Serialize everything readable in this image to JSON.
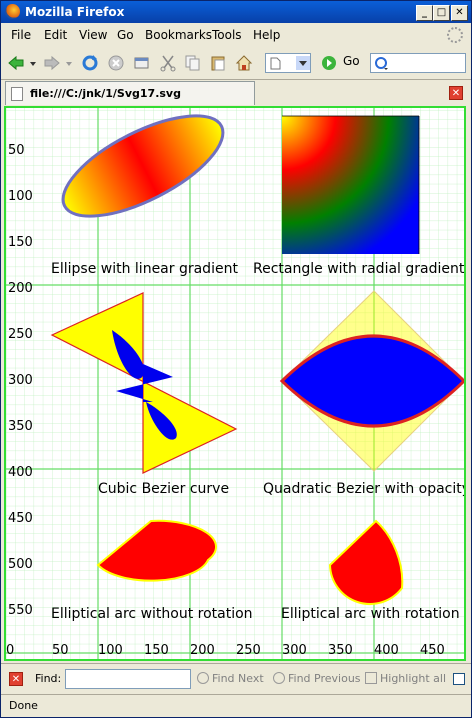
{
  "window": {
    "title": "Mozilla Firefox",
    "min": "_",
    "max": "□",
    "close": "✕"
  },
  "menu": {
    "file": "File",
    "edit": "Edit",
    "view": "View",
    "go": "Go",
    "bookmarks": "Bookmarks",
    "tools": "Tools",
    "help": "Help"
  },
  "nav": {
    "go_label": "Go"
  },
  "tab": {
    "title": "file:///C:/jnk/1/Svg17.svg",
    "close": "✕"
  },
  "svg": {
    "y_ticks": [
      "50",
      "100",
      "150",
      "200",
      "250",
      "300",
      "350",
      "400",
      "450",
      "500",
      "550"
    ],
    "x_ticks": [
      "0",
      "50",
      "100",
      "150",
      "200",
      "250",
      "300",
      "350",
      "400",
      "450"
    ],
    "captions": {
      "ellipse": "Ellipse with linear gradient",
      "rect": "Rectangle with radial gradient",
      "cubic": "Cubic Bezier curve",
      "quad": "Quadratic Bezier with opacity",
      "arc1": "Elliptical arc without rotation",
      "arc2": "Elliptical arc with rotation"
    }
  },
  "find": {
    "label": "Find:",
    "close": "✕",
    "next": "Find Next",
    "previous": "Find Previous",
    "highlight": "Highlight all",
    "value": ""
  },
  "status": {
    "text": "Done"
  }
}
